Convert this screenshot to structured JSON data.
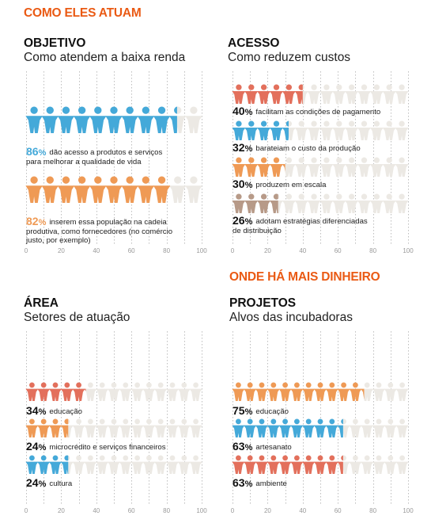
{
  "headings": {
    "main": "COMO ELES ATUAM",
    "secondary": "ONDE HÁ MAIS DINHEIRO"
  },
  "colors": {
    "accent": "#ea5a14",
    "blue": "#44a9d9",
    "orange": "#ef9a55",
    "red": "#e3705c",
    "brown": "#b79a88",
    "empty": "#ece9e4"
  },
  "chart_data": [
    {
      "type": "bar",
      "id": "objetivo",
      "title": "OBJETIVO",
      "subtitle": "Como atendem a baixa renda",
      "xlim": [
        0,
        100
      ],
      "ticks": [
        "0",
        "20",
        "40",
        "60",
        "80",
        "100"
      ],
      "bars": [
        {
          "value": 86,
          "pct_label": "86",
          "color": "blue",
          "color_label": "blue",
          "desc": [
            "dão acesso a produtos e serviços",
            "para melhorar a qualidade de vida"
          ]
        },
        {
          "value": 82,
          "pct_label": "82",
          "color": "orange",
          "color_label": "orange",
          "desc": [
            "inserem essa população na cadeia",
            "produtiva, como fornecedores (no comércio",
            "justo, por exemplo)"
          ]
        }
      ]
    },
    {
      "type": "bar",
      "id": "acesso",
      "title": "ACESSO",
      "subtitle": "Como reduzem custos",
      "xlim": [
        0,
        100
      ],
      "ticks": [
        "0",
        "20",
        "40",
        "60",
        "80",
        "100"
      ],
      "bars": [
        {
          "value": 40,
          "pct_label": "40",
          "color": "red",
          "desc": [
            "facilitam as condições de pagamento"
          ]
        },
        {
          "value": 32,
          "pct_label": "32",
          "color": "blue",
          "desc": [
            "barateiam o custo da produção"
          ]
        },
        {
          "value": 30,
          "pct_label": "30",
          "color": "orange",
          "desc": [
            "produzem em escala"
          ]
        },
        {
          "value": 26,
          "pct_label": "26",
          "color": "brown",
          "desc": [
            "adotam estratégias diferenciadas",
            "de distribuição"
          ]
        }
      ]
    },
    {
      "type": "bar",
      "id": "area",
      "title": "ÁREA",
      "subtitle": "Setores de atuação",
      "xlim": [
        0,
        100
      ],
      "ticks": [
        "0",
        "20",
        "40",
        "60",
        "80",
        "100"
      ],
      "bars": [
        {
          "value": 34,
          "pct_label": "34",
          "color": "red",
          "desc": [
            "educação"
          ]
        },
        {
          "value": 24,
          "pct_label": "24",
          "color": "orange",
          "desc": [
            "microcrédito e serviços financeiros"
          ]
        },
        {
          "value": 24,
          "pct_label": "24",
          "color": "blue",
          "desc": [
            "cultura"
          ]
        }
      ]
    },
    {
      "type": "bar",
      "id": "projetos",
      "title": "PROJETOS",
      "subtitle": "Alvos das incubadoras",
      "xlim": [
        0,
        100
      ],
      "ticks": [
        "0",
        "20",
        "40",
        "60",
        "80",
        "100"
      ],
      "bars": [
        {
          "value": 75,
          "pct_label": "75",
          "color": "orange",
          "desc": [
            "educação"
          ]
        },
        {
          "value": 63,
          "pct_label": "63",
          "color": "blue",
          "desc": [
            "artesanato"
          ]
        },
        {
          "value": 63,
          "pct_label": "63",
          "color": "red",
          "desc": [
            "ambiente"
          ]
        }
      ]
    }
  ]
}
